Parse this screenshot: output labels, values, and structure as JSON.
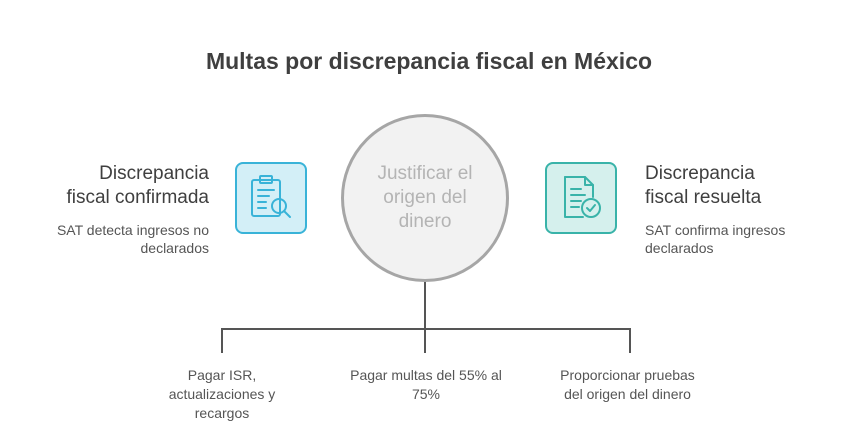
{
  "title": "Multas por discrepancia fiscal en México",
  "center": {
    "text": "Justificar el origen del dinero"
  },
  "left": {
    "title_line1": "Discrepancia",
    "title_line2": "fiscal confirmada",
    "desc_line1": "SAT detecta ingresos no",
    "desc_line2": "declarados",
    "icon": "clipboard-search-icon"
  },
  "right": {
    "title_line1": "Discrepancia",
    "title_line2": "fiscal resuelta",
    "desc_line1": "SAT confirma ingresos",
    "desc_line2": "declarados",
    "icon": "document-check-icon"
  },
  "outcomes": [
    {
      "line1": "Pagar ISR,",
      "line2": "actualizaciones y",
      "line3": "recargos"
    },
    {
      "line1": "Pagar multas del 55% al",
      "line2": "75%"
    },
    {
      "line1": "Proporcionar pruebas",
      "line2": "del origen del dinero"
    }
  ],
  "colors": {
    "left_accent": "#39b3d8",
    "left_fill": "#d3eff7",
    "right_accent": "#39b3a9",
    "right_fill": "#d5f0ed",
    "circle_stroke": "#a6a6a6",
    "circle_fill": "#f2f2f2"
  }
}
